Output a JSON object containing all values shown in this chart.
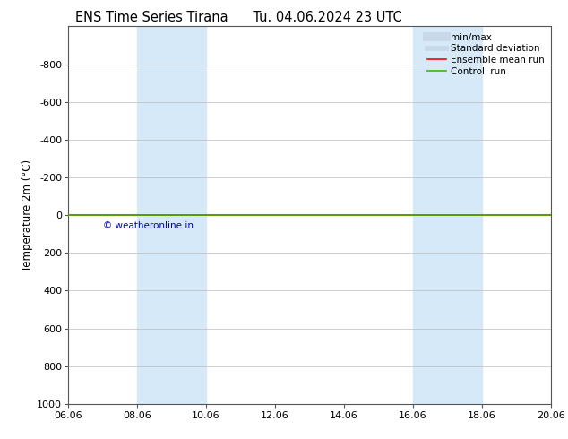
{
  "title": "ENS Time Series Tirana",
  "title2": "Tu. 04.06.2024 23 UTC",
  "ylabel": "Temperature 2m (°C)",
  "background_color": "#ffffff",
  "plot_bg_color": "#ffffff",
  "ylim_bottom": 1000,
  "ylim_top": -1000,
  "yticks": [
    -800,
    -600,
    -400,
    -200,
    0,
    200,
    400,
    600,
    800,
    1000
  ],
  "xtick_labels": [
    "06.06",
    "08.06",
    "10.06",
    "12.06",
    "14.06",
    "16.06",
    "18.06",
    "20.06"
  ],
  "xtick_positions": [
    0,
    2,
    4,
    6,
    8,
    10,
    12,
    14
  ],
  "xlim": [
    0,
    14
  ],
  "shaded_bands": [
    {
      "x_start": 2,
      "x_end": 4
    },
    {
      "x_start": 10,
      "x_end": 12
    }
  ],
  "shaded_color": "#d6e9f8",
  "mean_line_y": 0,
  "mean_line_color": "#ff0000",
  "control_line_y": 0,
  "control_line_color": "#3cb800",
  "copyright_text": "© weatheronline.in",
  "copyright_color": "#0000cd",
  "legend_items": [
    {
      "label": "min/max",
      "color": "#c8d8e8",
      "linewidth": 7,
      "linestyle": "-"
    },
    {
      "label": "Standard deviation",
      "color": "#c8d8e8",
      "linewidth": 4,
      "linestyle": "-"
    },
    {
      "label": "Ensemble mean run",
      "color": "#ff0000",
      "linewidth": 1.2,
      "linestyle": "-"
    },
    {
      "label": "Controll run",
      "color": "#3cb800",
      "linewidth": 1.2,
      "linestyle": "-"
    }
  ],
  "grid_color": "#bbbbbb",
  "spine_color": "#555555",
  "title_fontsize": 10.5,
  "tick_fontsize": 8,
  "ylabel_fontsize": 8.5,
  "copyright_fontsize": 7.5
}
